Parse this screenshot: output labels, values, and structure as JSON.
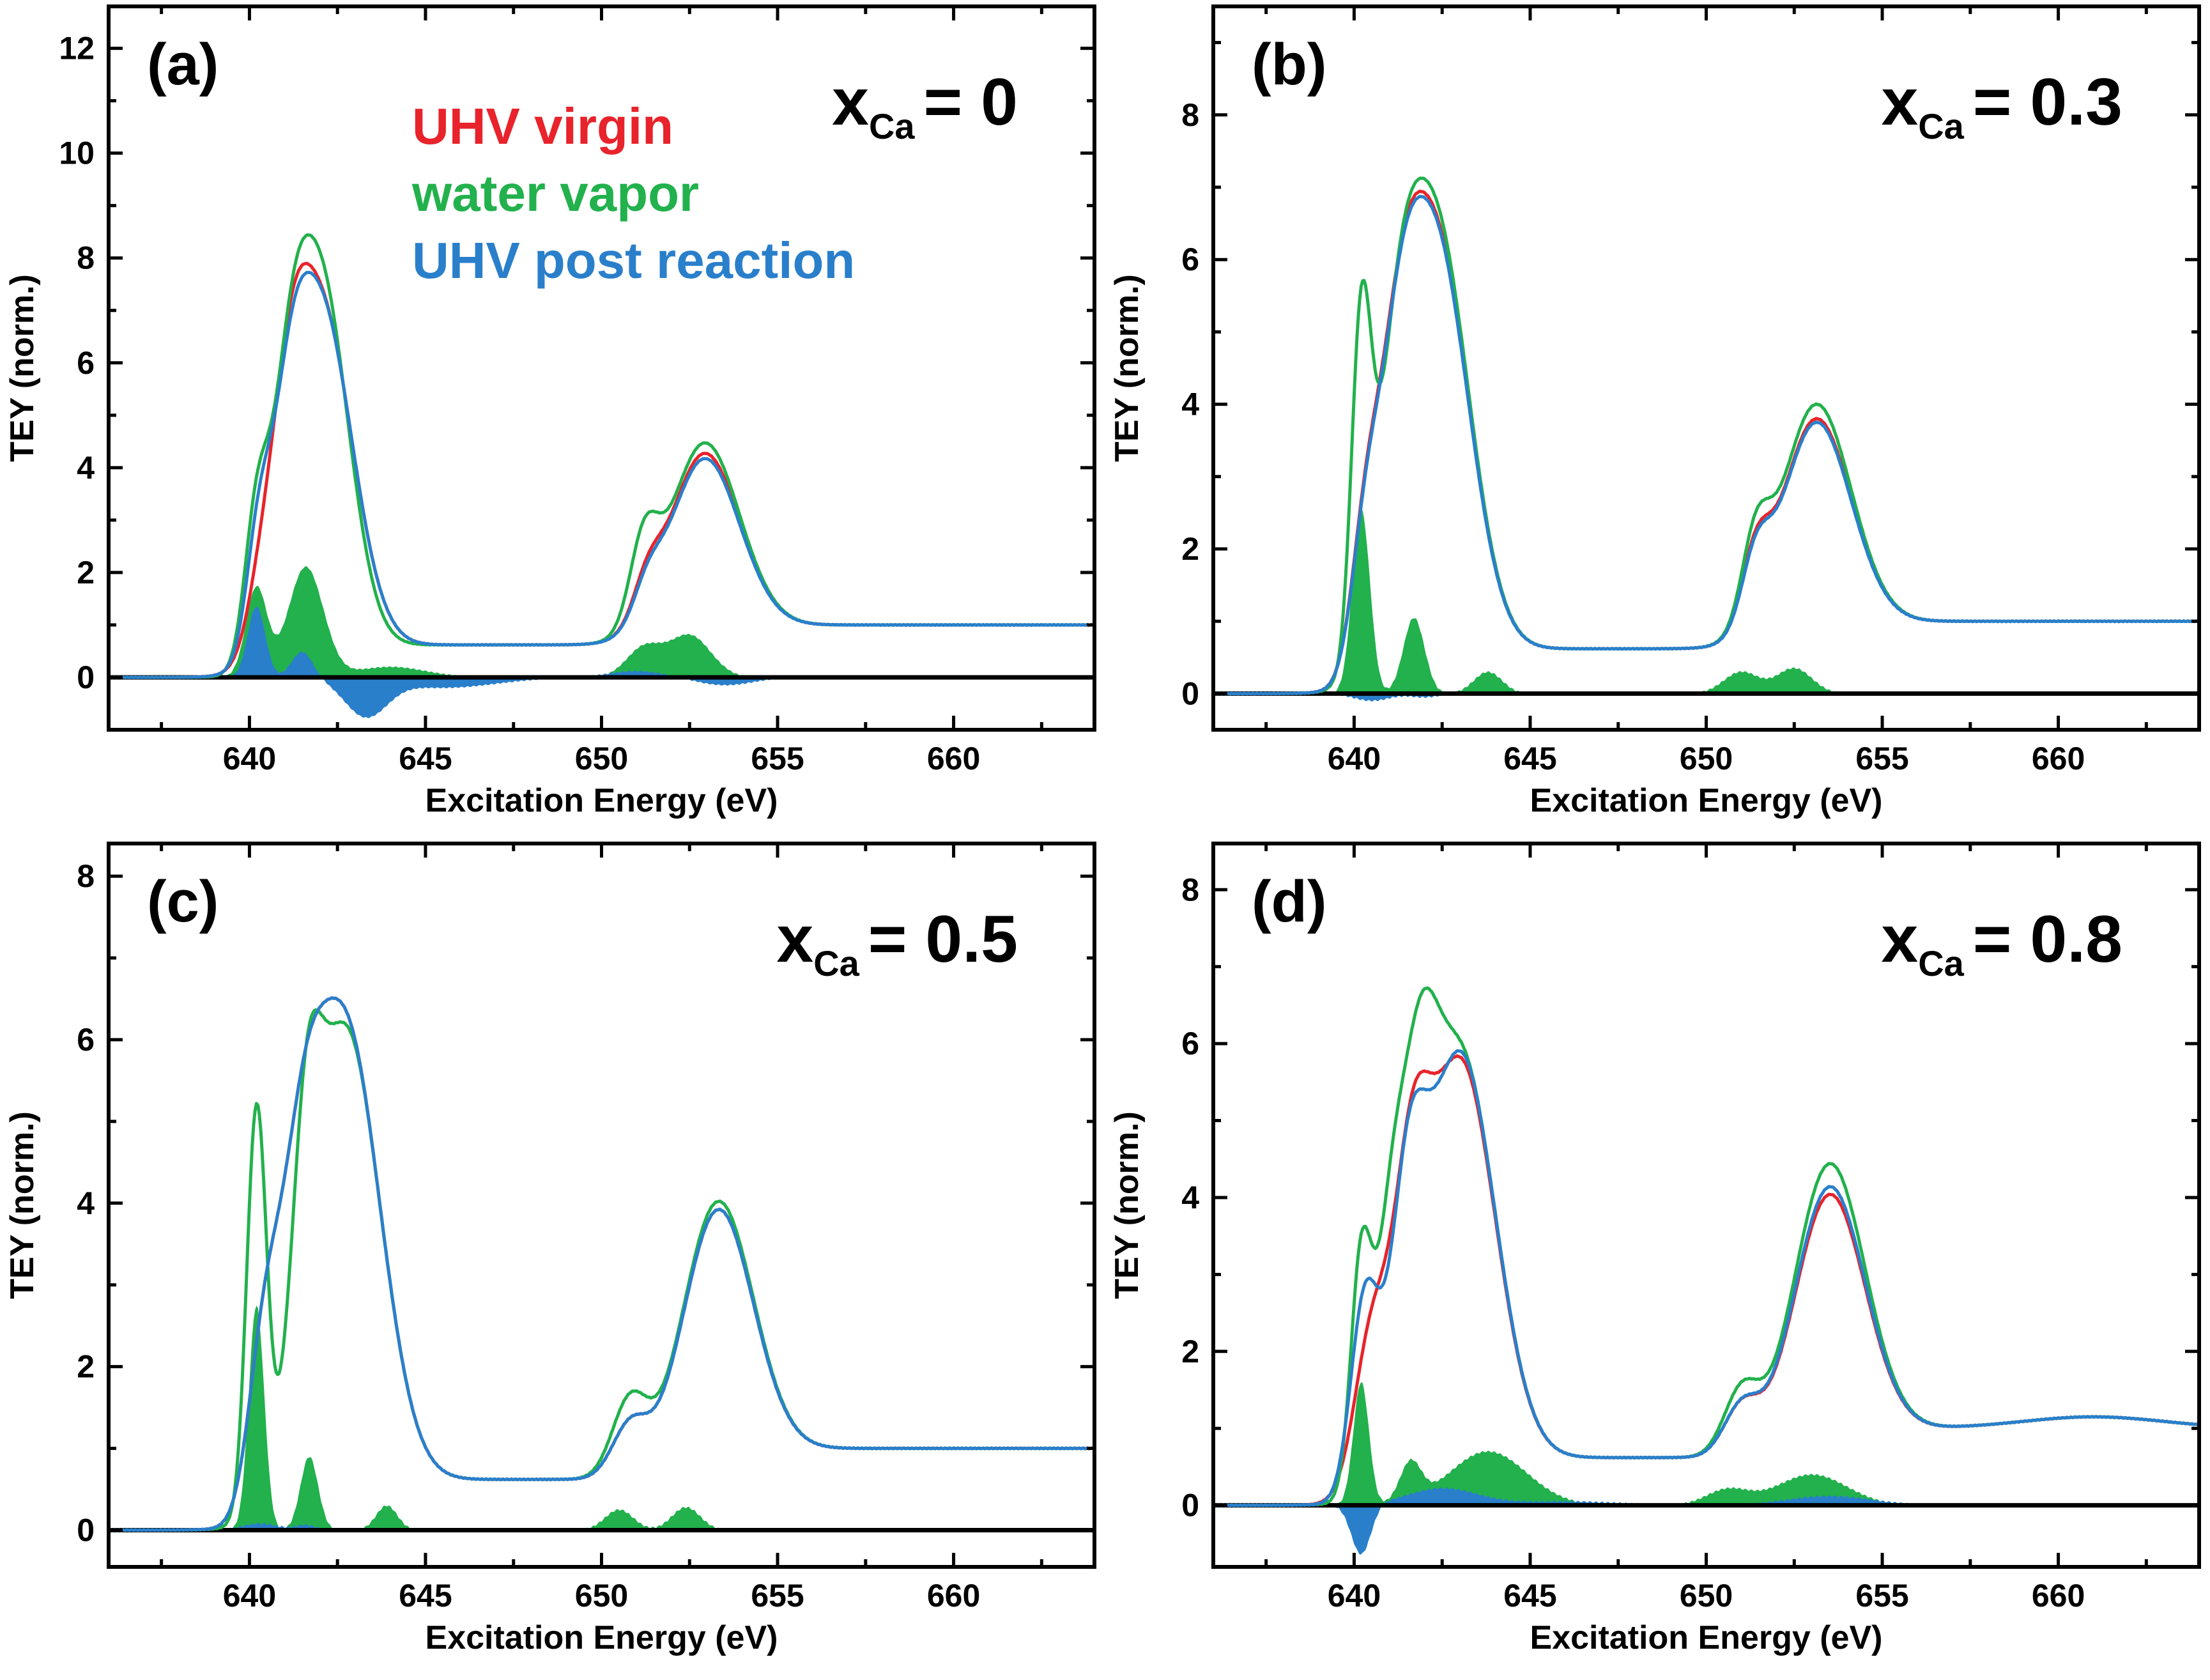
{
  "colors": {
    "uhv_virgin": "#e8232b",
    "water_vapor": "#22b14c",
    "uhv_post_reaction": "#2a7fcb",
    "axis": "#000000"
  },
  "legend": {
    "uhv_virgin": "UHV virgin",
    "water_vapor": "water vapor",
    "uhv_post_prefix": "UHV",
    "uhv_post_suffix": "post reaction"
  },
  "chart_data": [
    {
      "type": "line",
      "panel_label": "(a)",
      "composition_var": "x",
      "composition_sub": "Ca",
      "composition_value": "= 0",
      "xlabel": "Excitation Energy (eV)",
      "ylabel": "TEY (norm.)",
      "xlim": [
        636,
        664
      ],
      "ylim": [
        -1,
        12.8
      ],
      "xticks": [
        "640",
        "645",
        "650",
        "655",
        "660"
      ],
      "yticks": [
        "0",
        "2",
        "4",
        "6",
        "8",
        "10",
        "12"
      ],
      "series": [
        {
          "name": "UHV virgin",
          "key": "uhv_virgin",
          "peaks": [
            [
              640.3,
              0.4,
              0.9
            ],
            [
              641.1,
              0.5,
              2.6
            ],
            [
              642.0,
              0.9,
              6.6
            ],
            [
              651.3,
              0.4,
              0.7
            ],
            [
              652.9,
              1.0,
              3.4
            ]
          ]
        },
        {
          "name": "water vapor",
          "key": "water_vapor",
          "peaks": [
            [
              640.2,
              0.35,
              2.6
            ],
            [
              641.1,
              0.5,
              3.0
            ],
            [
              642.0,
              0.8,
              7.1
            ],
            [
              651.2,
              0.4,
              1.5
            ],
            [
              652.9,
              1.0,
              3.6
            ]
          ]
        },
        {
          "name": "UHV post reaction",
          "key": "uhv_post_reaction",
          "peaks": [
            [
              640.25,
              0.35,
              1.9
            ],
            [
              641.1,
              0.5,
              2.3
            ],
            [
              642.0,
              0.9,
              6.6
            ],
            [
              651.3,
              0.4,
              0.6
            ],
            [
              652.9,
              1.0,
              3.3
            ]
          ]
        }
      ],
      "difference_water": [
        [
          640.2,
          0.3,
          1.7
        ],
        [
          641.6,
          0.5,
          2.1
        ],
        [
          644.0,
          1.0,
          0.2
        ],
        [
          651.2,
          0.5,
          0.55
        ],
        [
          652.5,
          0.6,
          0.8
        ]
      ],
      "difference_post": [
        [
          640.2,
          0.25,
          1.35
        ],
        [
          641.5,
          0.3,
          0.5
        ],
        [
          643.3,
          0.6,
          -0.7
        ],
        [
          645.5,
          1.5,
          -0.2
        ],
        [
          651.0,
          0.8,
          0.12
        ],
        [
          653.5,
          0.8,
          -0.15
        ]
      ]
    },
    {
      "type": "line",
      "panel_label": "(b)",
      "composition_var": "x",
      "composition_sub": "Ca",
      "composition_value": "= 0.3",
      "xlabel": "Excitation Energy (eV)",
      "ylabel": "TEY (norm.)",
      "xlim": [
        636,
        664
      ],
      "ylim": [
        -0.5,
        9.5
      ],
      "xticks": [
        "640",
        "645",
        "650",
        "655",
        "660"
      ],
      "yticks": [
        "0",
        "2",
        "4",
        "6",
        "8"
      ],
      "series": [
        {
          "name": "UHV virgin",
          "key": "uhv_virgin",
          "peaks": [
            [
              640.3,
              0.4,
              1.5
            ],
            [
              641.2,
              0.6,
              2.6
            ],
            [
              642.3,
              0.95,
              5.7
            ],
            [
              651.4,
              0.4,
              0.9
            ],
            [
              653.1,
              1.0,
              2.9
            ]
          ]
        },
        {
          "name": "water vapor",
          "key": "water_vapor",
          "peaks": [
            [
              640.2,
              0.28,
              4.4
            ],
            [
              641.2,
              0.6,
              2.6
            ],
            [
              642.3,
              0.95,
              5.9
            ],
            [
              651.4,
              0.4,
              1.1
            ],
            [
              653.1,
              1.0,
              3.1
            ]
          ]
        },
        {
          "name": "UHV post reaction",
          "key": "uhv_post_reaction",
          "peaks": [
            [
              640.3,
              0.4,
              1.45
            ],
            [
              641.2,
              0.6,
              2.55
            ],
            [
              642.3,
              0.95,
              5.65
            ],
            [
              651.4,
              0.4,
              0.85
            ],
            [
              653.1,
              1.0,
              2.85
            ]
          ]
        }
      ],
      "difference_water": [
        [
          640.2,
          0.25,
          2.55
        ],
        [
          641.7,
          0.3,
          1.05
        ],
        [
          643.8,
          0.4,
          0.3
        ],
        [
          651.0,
          0.5,
          0.3
        ],
        [
          652.5,
          0.5,
          0.35
        ]
      ],
      "difference_post": [
        [
          640.5,
          0.5,
          -0.1
        ],
        [
          642.0,
          0.4,
          -0.05
        ]
      ]
    },
    {
      "type": "line",
      "panel_label": "(c)",
      "composition_var": "x",
      "composition_sub": "Ca",
      "composition_value": "= 0.5",
      "xlabel": "Excitation Energy (eV)",
      "ylabel": "TEY (norm.)",
      "xlim": [
        636,
        664
      ],
      "ylim": [
        -0.45,
        8.4
      ],
      "xticks": [
        "640",
        "645",
        "650",
        "655",
        "660"
      ],
      "yticks": [
        "0",
        "2",
        "4",
        "6",
        "8"
      ],
      "series": [
        {
          "name": "UHV virgin",
          "key": "uhv_virgin",
          "peaks": [
            [
              640.4,
              0.45,
              1.8
            ],
            [
              641.4,
              0.6,
              2.6
            ],
            [
              642.7,
              1.0,
              5.6
            ],
            [
              650.8,
              0.5,
              0.6
            ],
            [
              653.3,
              1.0,
              3.0
            ]
          ]
        },
        {
          "name": "water vapor",
          "key": "water_vapor",
          "peaks": [
            [
              640.2,
              0.28,
              4.9
            ],
            [
              641.6,
              0.4,
              2.5
            ],
            [
              642.7,
              1.0,
              5.6
            ],
            [
              650.8,
              0.5,
              0.9
            ],
            [
              653.3,
              1.0,
              3.1
            ]
          ]
        },
        {
          "name": "UHV post reaction",
          "key": "uhv_post_reaction",
          "peaks": [
            [
              640.4,
              0.45,
              1.8
            ],
            [
              641.4,
              0.6,
              2.6
            ],
            [
              642.7,
              1.0,
              5.6
            ],
            [
              650.8,
              0.5,
              0.6
            ],
            [
              653.3,
              1.0,
              3.0
            ]
          ]
        }
      ],
      "difference_water": [
        [
          640.2,
          0.22,
          2.75
        ],
        [
          641.7,
          0.25,
          0.9
        ],
        [
          643.9,
          0.3,
          0.3
        ],
        [
          650.5,
          0.4,
          0.25
        ],
        [
          652.4,
          0.4,
          0.28
        ]
      ],
      "difference_post": [
        [
          640.3,
          0.5,
          0.08
        ],
        [
          641.6,
          0.3,
          0.06
        ]
      ]
    },
    {
      "type": "line",
      "panel_label": "(d)",
      "composition_var": "x",
      "composition_sub": "Ca",
      "composition_value": "= 0.8",
      "xlabel": "Excitation Energy (eV)",
      "ylabel": "TEY (norm.)",
      "xlim": [
        636,
        664
      ],
      "ylim": [
        -0.8,
        8.6
      ],
      "xticks": [
        "640",
        "645",
        "650",
        "655",
        "660"
      ],
      "yticks": [
        "0",
        "2",
        "4",
        "6",
        "8"
      ],
      "series": [
        {
          "name": "UHV virgin",
          "key": "uhv_virgin",
          "peaks": [
            [
              640.5,
              0.5,
              2.0
            ],
            [
              641.6,
              0.5,
              2.8
            ],
            [
              643.0,
              1.0,
              5.2
            ],
            [
              651.0,
              0.5,
              0.6
            ],
            [
              653.5,
              1.0,
              3.1
            ],
            [
              661.0,
              2.0,
              0.15
            ]
          ]
        },
        {
          "name": "water vapor",
          "key": "water_vapor",
          "peaks": [
            [
              640.2,
              0.3,
              3.0
            ],
            [
              641.0,
              0.4,
              2.5
            ],
            [
              641.8,
              0.5,
              3.2
            ],
            [
              643.0,
              1.0,
              5.3
            ],
            [
              651.0,
              0.5,
              0.8
            ],
            [
              653.5,
              1.0,
              3.5
            ],
            [
              661.0,
              2.0,
              0.15
            ]
          ]
        },
        {
          "name": "UHV post reaction",
          "key": "uhv_post_reaction",
          "peaks": [
            [
              640.3,
              0.4,
              2.5
            ],
            [
              641.5,
              0.5,
              2.9
            ],
            [
              643.0,
              1.0,
              5.3
            ],
            [
              651.0,
              0.5,
              0.6
            ],
            [
              653.5,
              1.0,
              3.2
            ],
            [
              661.0,
              2.0,
              0.15
            ]
          ]
        }
      ],
      "difference_water": [
        [
          640.2,
          0.22,
          1.6
        ],
        [
          641.6,
          0.3,
          0.5
        ],
        [
          643.8,
          1.1,
          0.7
        ],
        [
          650.6,
          0.6,
          0.2
        ],
        [
          653.0,
          1.0,
          0.4
        ]
      ],
      "difference_post": [
        [
          640.2,
          0.28,
          -0.65
        ],
        [
          642.5,
          1.0,
          0.22
        ],
        [
          646.0,
          1.5,
          0.05
        ],
        [
          653.5,
          1.2,
          0.12
        ]
      ]
    }
  ]
}
